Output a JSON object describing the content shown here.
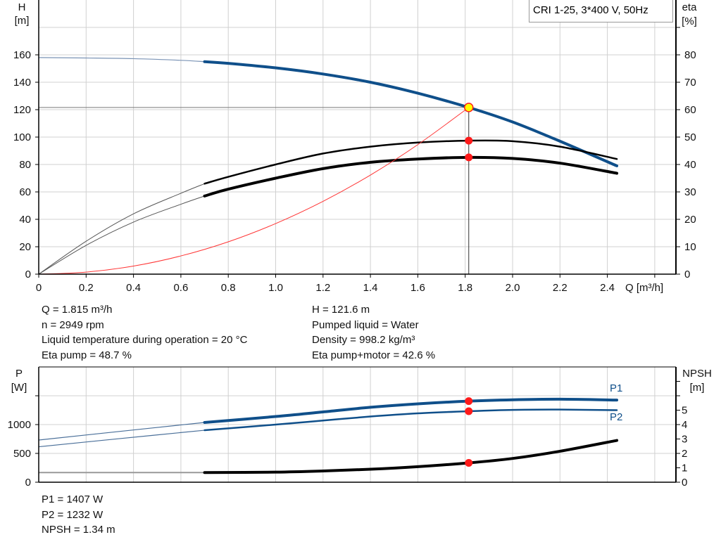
{
  "legend_title": "CRI 1-25, 3*400 V, 50Hz",
  "colors": {
    "head": "#0f4f8a",
    "eta": "#000000",
    "system": "#ff3333",
    "marker": "#ff1a1a",
    "duty_fill": "#ffff00",
    "power": "#0f4f8a",
    "npsh": "#000000",
    "grid": "#d0d0d0"
  },
  "info_left": [
    "Q = 1.815 m³/h",
    "n = 2949 rpm",
    "Liquid temperature during operation = 20 °C",
    "Eta pump = 48.7 %"
  ],
  "info_right": [
    "H = 121.6 m",
    "Pumped liquid = Water",
    "Density = 998.2 kg/m³",
    "Eta pump+motor = 42.6 %"
  ],
  "info_bottom": [
    "P1 = 1407 W",
    "P2 = 1232 W",
    "NPSH = 1.34 m"
  ],
  "chart_data": [
    {
      "type": "line",
      "title": "",
      "xlabel": "Q [m³/h]",
      "ylabel_left": [
        "H",
        "[m]"
      ],
      "ylabel_right": [
        "eta",
        "[%]"
      ],
      "xlim": [
        0,
        2.6
      ],
      "xticks": [
        "0",
        "0.2",
        "0.4",
        "0.6",
        "0.8",
        "1.0",
        "1.2",
        "1.4",
        "1.6",
        "1.8",
        "2.0",
        "2.2",
        "2.4"
      ],
      "ylim_left": [
        0,
        200
      ],
      "yticks_left": [
        "0",
        "20",
        "40",
        "60",
        "80",
        "100",
        "120",
        "140",
        "160"
      ],
      "ylim_right": [
        0,
        100
      ],
      "yticks_right": [
        "0",
        "10",
        "20",
        "30",
        "40",
        "50",
        "60",
        "70",
        "80"
      ],
      "grid": true,
      "duty_point": {
        "Q": 1.815,
        "H": 121.6,
        "eta_pump": 48.7,
        "eta_pump_motor": 42.6
      },
      "series": [
        {
          "key": "H",
          "axis": "left",
          "x": [
            0,
            0.2,
            0.4,
            0.6,
            0.7,
            0.8,
            1.0,
            1.2,
            1.4,
            1.6,
            1.815,
            2.0,
            2.2,
            2.44
          ],
          "y": [
            158,
            157.7,
            157.2,
            156,
            155,
            153.8,
            150.5,
            146,
            140,
            132,
            121.6,
            111,
            97,
            79
          ],
          "low_flow_until": 0.7
        },
        {
          "key": "eta_pump",
          "axis": "right",
          "x": [
            0,
            0.2,
            0.4,
            0.6,
            0.7,
            0.8,
            1.0,
            1.2,
            1.4,
            1.6,
            1.815,
            2.0,
            2.2,
            2.44
          ],
          "y": [
            0,
            12,
            22,
            29.5,
            33,
            35.5,
            40,
            44,
            46.5,
            48,
            48.7,
            48.5,
            46.5,
            42
          ],
          "low_flow_until": 0.7
        },
        {
          "key": "eta_pump_motor",
          "axis": "right",
          "x": [
            0,
            0.2,
            0.4,
            0.6,
            0.7,
            0.8,
            1.0,
            1.2,
            1.4,
            1.6,
            1.815,
            2.0,
            2.2,
            2.44
          ],
          "y": [
            0,
            10.5,
            19,
            25.5,
            28.5,
            31,
            35,
            38.5,
            40.8,
            42,
            42.6,
            42.2,
            40.5,
            36.8
          ],
          "low_flow_until": 0.7
        },
        {
          "key": "system",
          "axis": "left",
          "x": [
            0,
            0.2,
            0.4,
            0.6,
            0.8,
            1.0,
            1.2,
            1.4,
            1.6,
            1.815
          ],
          "y": [
            0,
            1.5,
            5.9,
            13.3,
            23.6,
            36.9,
            53.1,
            72.3,
            94.5,
            121.6
          ]
        }
      ]
    },
    {
      "type": "line",
      "title": "",
      "ylabel_left": [
        "P",
        "[W]"
      ],
      "ylabel_right": [
        "NPSH",
        "[m]"
      ],
      "xlim": [
        0,
        2.6
      ],
      "ylim_left": [
        0,
        2000
      ],
      "yticks_left": [
        "0",
        "500",
        "1000"
      ],
      "ylim_right": [
        0,
        8
      ],
      "yticks_right": [
        "0",
        "1",
        "2",
        "3",
        "4",
        "5"
      ],
      "grid": true,
      "duty_point": {
        "Q": 1.815,
        "P1": 1407,
        "P2": 1232,
        "NPSH": 1.34
      },
      "series": [
        {
          "key": "P1",
          "name": "P1",
          "axis": "left",
          "x": [
            0,
            0.35,
            0.7,
            1.0,
            1.2,
            1.4,
            1.6,
            1.815,
            2.0,
            2.2,
            2.44
          ],
          "y": [
            732,
            885,
            1037,
            1140,
            1220,
            1300,
            1360,
            1407,
            1430,
            1440,
            1425
          ],
          "low_flow_until": 0.7
        },
        {
          "key": "P2",
          "name": "P2",
          "axis": "left",
          "x": [
            0,
            0.35,
            0.7,
            1.0,
            1.2,
            1.4,
            1.6,
            1.815,
            2.0,
            2.2,
            2.44
          ],
          "y": [
            615,
            760,
            902,
            1000,
            1070,
            1140,
            1195,
            1232,
            1255,
            1260,
            1250
          ],
          "low_flow_until": 0.7
        },
        {
          "key": "NPSH",
          "axis": "right",
          "x": [
            0,
            0.35,
            0.7,
            1.0,
            1.2,
            1.4,
            1.6,
            1.815,
            2.0,
            2.2,
            2.44
          ],
          "y": [
            0.67,
            0.67,
            0.67,
            0.7,
            0.78,
            0.9,
            1.08,
            1.34,
            1.65,
            2.15,
            2.9
          ],
          "low_flow_until": 0.7
        }
      ]
    }
  ]
}
